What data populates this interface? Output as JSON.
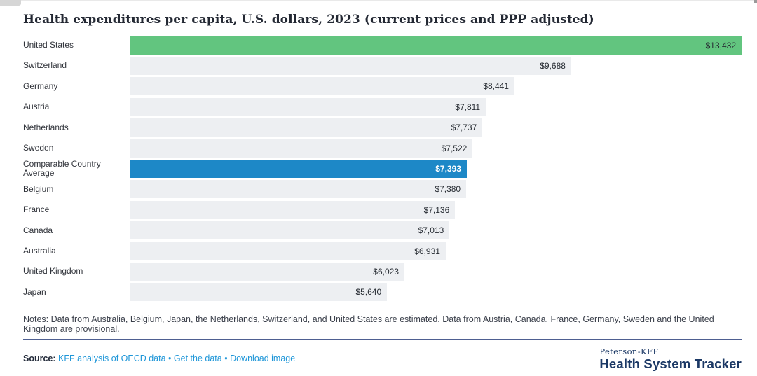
{
  "title": "Health expenditures per capita, U.S. dollars, 2023 (current prices and PPP adjusted)",
  "chart_data": {
    "type": "bar",
    "orientation": "horizontal",
    "title": "Health expenditures per capita, U.S. dollars, 2023 (current prices and PPP adjusted)",
    "xlabel": "",
    "ylabel": "",
    "xlim": [
      0,
      13432
    ],
    "grid": false,
    "legend": "none",
    "categories": [
      "United States",
      "Switzerland",
      "Germany",
      "Austria",
      "Netherlands",
      "Sweden",
      "Comparable Country Average",
      "Belgium",
      "France",
      "Canada",
      "Australia",
      "United Kingdom",
      "Japan"
    ],
    "values": [
      13432,
      9688,
      8441,
      7811,
      7737,
      7522,
      7393,
      7380,
      7136,
      7013,
      6931,
      6023,
      5640
    ],
    "bars": [
      {
        "category": "United States",
        "value": 13432,
        "label": "$13,432",
        "color": "green"
      },
      {
        "category": "Switzerland",
        "value": 9688,
        "label": "$9,688",
        "color": "default"
      },
      {
        "category": "Germany",
        "value": 8441,
        "label": "$8,441",
        "color": "default"
      },
      {
        "category": "Austria",
        "value": 7811,
        "label": "$7,811",
        "color": "default"
      },
      {
        "category": "Netherlands",
        "value": 7737,
        "label": "$7,737",
        "color": "default"
      },
      {
        "category": "Sweden",
        "value": 7522,
        "label": "$7,522",
        "color": "default"
      },
      {
        "category": "Comparable Country Average",
        "value": 7393,
        "label": "$7,393",
        "color": "blue"
      },
      {
        "category": "Belgium",
        "value": 7380,
        "label": "$7,380",
        "color": "default"
      },
      {
        "category": "France",
        "value": 7136,
        "label": "$7,136",
        "color": "default"
      },
      {
        "category": "Canada",
        "value": 7013,
        "label": "$7,013",
        "color": "default"
      },
      {
        "category": "Australia",
        "value": 6931,
        "label": "$6,931",
        "color": "default"
      },
      {
        "category": "United Kingdom",
        "value": 6023,
        "label": "$6,023",
        "color": "default"
      },
      {
        "category": "Japan",
        "value": 5640,
        "label": "$5,640",
        "color": "default"
      }
    ]
  },
  "colors": {
    "green": "#62c57f",
    "blue": "#1d88c7",
    "default": "#edeff2",
    "link_blue": "#1e96d8",
    "navy": "#1b3865",
    "divider": "#4e5f91"
  },
  "notes": "Notes: Data from Australia, Belgium, Japan, the Netherlands, Switzerland, and United States are estimated. Data from Austria, Canada, France, Germany, Sweden and the United Kingdom are provisional.",
  "source": {
    "label": "Source:",
    "link1": "KFF analysis of OECD data",
    "separator": "•",
    "link2": "Get the data",
    "link3": "Download image"
  },
  "logo": {
    "top": "Peterson-KFF",
    "bottom": "Health System Tracker"
  }
}
